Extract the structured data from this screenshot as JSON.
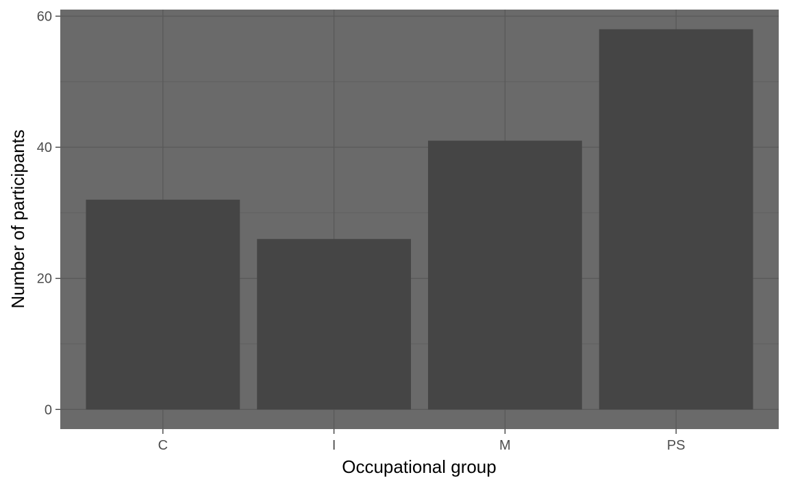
{
  "chart_data": {
    "type": "bar",
    "title": "",
    "xlabel": "Occupational group",
    "ylabel": "Number of participants",
    "categories": [
      "C",
      "I",
      "M",
      "PS"
    ],
    "values": [
      32,
      26,
      41,
      58
    ],
    "ylim": [
      -3,
      61
    ],
    "yticks": [
      0,
      20,
      40,
      60
    ],
    "grid": true,
    "colors": {
      "panel": "#6a6a6a",
      "bar": "#454545",
      "grid_major": "#595959",
      "grid_minor": "#606060",
      "tick_text": "#4d4d4d",
      "axis_title": "#000000"
    }
  }
}
